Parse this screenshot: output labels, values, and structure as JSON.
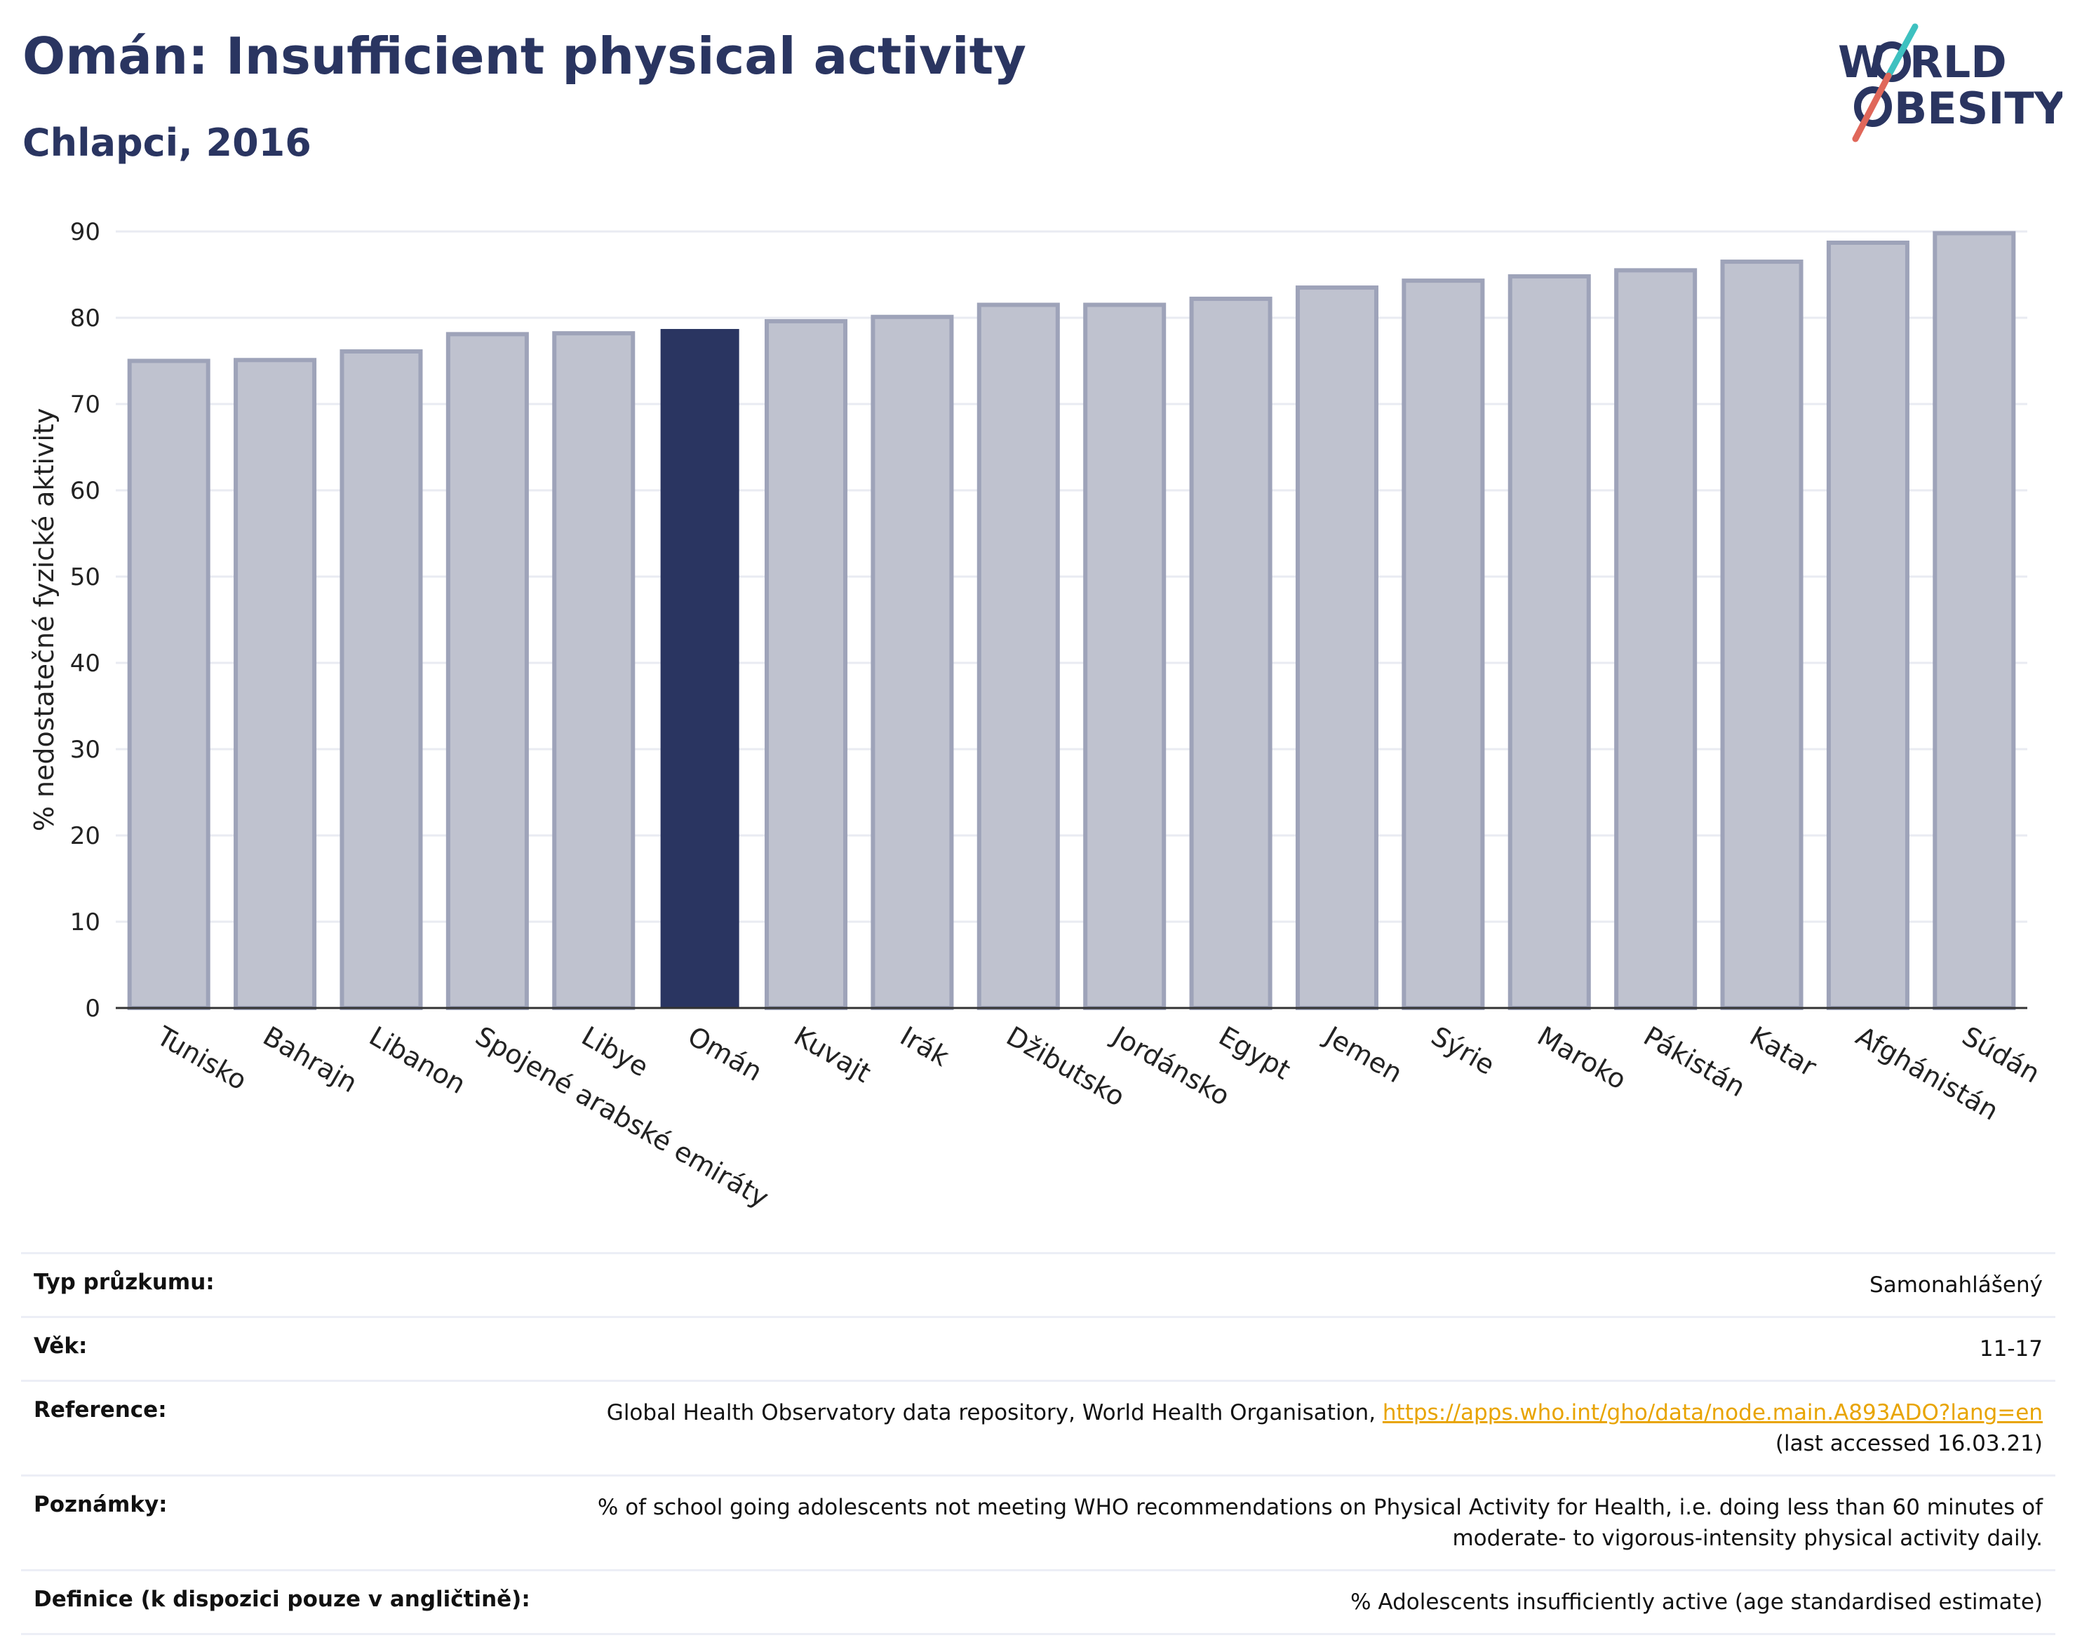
{
  "header": {
    "title": "Omán: Insufficient physical activity",
    "subtitle": "Chlapci, 2016"
  },
  "logo": {
    "line1_pre": "W",
    "line1_post": "RLD",
    "line2_post": "BESITY"
  },
  "colors": {
    "highlight": "#2a3561",
    "bar": "#bfc2cf",
    "bar_border": "#9ea3b9",
    "accent_teal": "#3ec1c0",
    "accent_red": "#e0675a"
  },
  "chart_data": {
    "type": "bar",
    "title": "Omán: Insufficient physical activity",
    "subtitle": "Chlapci, 2016",
    "xlabel": "",
    "ylabel": "% nedostatečné fyzické aktivity",
    "ylim": [
      0,
      90
    ],
    "yticks": [
      0,
      10,
      20,
      30,
      40,
      50,
      60,
      70,
      80,
      90
    ],
    "grid": true,
    "highlight": "Omán",
    "categories": [
      "Tunisko",
      "Bahrajn",
      "Libanon",
      "Spojené arabské emiráty",
      "Libye",
      "Omán",
      "Kuvajt",
      "Irák",
      "Džibutsko",
      "Jordánsko",
      "Egypt",
      "Jemen",
      "Sýrie",
      "Maroko",
      "Pákistán",
      "Katar",
      "Afghánistán",
      "Súdán"
    ],
    "values": [
      75.0,
      75.1,
      76.1,
      78.1,
      78.2,
      78.7,
      79.6,
      80.1,
      81.5,
      81.5,
      82.2,
      83.5,
      84.3,
      84.8,
      85.5,
      86.5,
      88.7,
      89.8
    ]
  },
  "info": {
    "rows": [
      {
        "label": "Typ průzkumu:",
        "value": "Samonahlášený"
      },
      {
        "label": "Věk:",
        "value": "11-17"
      },
      {
        "label": "Reference:",
        "value": "Global Health Observatory data repository, World Health Organisation,",
        "link": "https://apps.who.int/gho/data/node.main.A893ADO?lang=en",
        "value2": "(last accessed 16.03.21)"
      },
      {
        "label": "Poznámky:",
        "value": "% of school going adolescents not meeting WHO recommendations on Physical Activity for Health, i.e. doing less than 60 minutes of",
        "value2": "moderate- to vigorous-intensity physical activity daily."
      },
      {
        "label": "Definice (k dispozici pouze v angličtině):",
        "value": "% Adolescents insufficiently active (age standardised estimate)"
      }
    ]
  }
}
